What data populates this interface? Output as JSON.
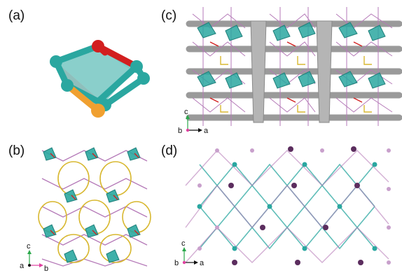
{
  "figure": {
    "panels": [
      {
        "label": "(a)"
      },
      {
        "label": "(b)",
        "axes": {
          "vertical": "c",
          "horizontal": "b",
          "origin": "a"
        }
      },
      {
        "label": "(c)",
        "axes": {
          "vertical": "c",
          "horizontal": "a",
          "origin": "b"
        }
      },
      {
        "label": "(d)",
        "axes": {
          "vertical": "c",
          "horizontal": "a",
          "origin": "b"
        }
      }
    ]
  },
  "colors": {
    "teal": "#2aa7a0",
    "teal_dark": "#1f7f7a",
    "red": "#d21f1f",
    "orange": "#f0a030",
    "purple": "#b57ab8",
    "yellow": "#d8b830",
    "gray": "#9a9a9a",
    "dark_node": "#5b2d5e",
    "axis_green": "#2aa84a",
    "axis_magenta": "#e040a0"
  }
}
